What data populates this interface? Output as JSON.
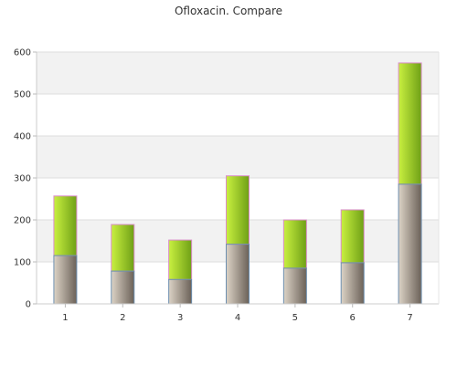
{
  "chart_data": {
    "type": "bar",
    "stacked": true,
    "title": "Ofloxacin. Compare",
    "categories": [
      "1",
      "2",
      "3",
      "4",
      "5",
      "6",
      "7"
    ],
    "series": [
      {
        "values": [
          115,
          78,
          58,
          142,
          85,
          98,
          285
        ]
      },
      {
        "values": [
          142,
          111,
          94,
          163,
          115,
          126,
          289
        ]
      }
    ],
    "totals": [
      257,
      189,
      152,
      305,
      200,
      224,
      574
    ],
    "ylim": [
      0,
      600
    ],
    "yticks": [
      0,
      100,
      200,
      300,
      400,
      500,
      600
    ],
    "grid": true,
    "legend": "none",
    "colors": {
      "bottom_light": "#dcd3c6",
      "bottom_dark": "#6b6158",
      "top_light": "#c9f040",
      "top_dark": "#6fa016",
      "bottom_stroke": "#6d8fb0",
      "top_stroke": "#d98cc8",
      "band": "#f2f2f2",
      "grid": "#dddddd"
    }
  }
}
